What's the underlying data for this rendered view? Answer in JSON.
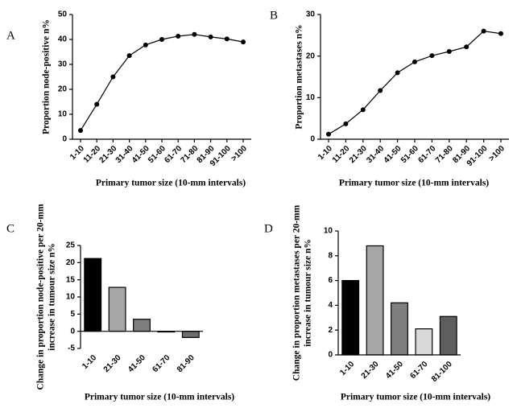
{
  "chart_data": [
    {
      "type": "line",
      "panel": "A",
      "ylabel": [
        "Proportion node-positive  n%"
      ],
      "xlabel": "Primary tumor size (10-mm intervals)",
      "categories": [
        "1-10",
        "11-20",
        "21-30",
        "31-40",
        "41-50",
        "51-60",
        "61-70",
        "71-80",
        "81-90",
        "91-100",
        ">100"
      ],
      "values": [
        3.5,
        14,
        25,
        33.5,
        37.8,
        40,
        41.3,
        42,
        41,
        40.2,
        39
      ],
      "color": "#000000",
      "ylim": [
        0,
        50
      ],
      "yticks": [
        0,
        10,
        20,
        30,
        40,
        50
      ]
    },
    {
      "type": "line",
      "panel": "B",
      "ylabel": [
        "Proportion metastases  n%"
      ],
      "xlabel": "Primary tumor size (10-mm intervals)",
      "categories": [
        "1-10",
        "11-20",
        "21-30",
        "31-40",
        "41-50",
        "51-60",
        "61-70",
        "71-80",
        "81-90",
        "91-100",
        ">100"
      ],
      "values": [
        1.2,
        3.7,
        7.1,
        11.7,
        16,
        18.6,
        20.1,
        21.1,
        22.2,
        26,
        25.4
      ],
      "color": "#000000",
      "ylim": [
        0,
        30
      ],
      "yticks": [
        0,
        10,
        20,
        30
      ]
    },
    {
      "type": "bar",
      "panel": "C",
      "ylabel": [
        "Change in proportion node-positive per 20-mm",
        "increase in tumour size  n%"
      ],
      "xlabel": "Primary tumor size (10-mm intervals)",
      "categories": [
        "1-10",
        "21-30",
        "41-50",
        "61-70",
        "81-90"
      ],
      "values": [
        21.2,
        12.8,
        3.5,
        -0.2,
        -1.8
      ],
      "colors": [
        "#000000",
        "#a6a6a6",
        "#7f7f7f",
        "#d9d9d9",
        "#6e6e6e"
      ],
      "ylim": [
        -5,
        25
      ],
      "yticks": [
        -5,
        0,
        5,
        10,
        15,
        20,
        25
      ]
    },
    {
      "type": "bar",
      "panel": "D",
      "ylabel": [
        "Change in proportion metastases per 20-mm",
        "increase in tumour size  n%"
      ],
      "xlabel": "Primary tumor size (10-mm intervals)",
      "categories": [
        "1-10",
        "21-30",
        "41-50",
        "61-70",
        "81-100"
      ],
      "values": [
        6,
        8.8,
        4.2,
        2.1,
        3.1
      ],
      "colors": [
        "#000000",
        "#a6a6a6",
        "#7f7f7f",
        "#d9d9d9",
        "#5e5e5e"
      ],
      "ylim": [
        0,
        10
      ],
      "yticks": [
        0,
        2,
        4,
        6,
        8,
        10
      ]
    }
  ]
}
